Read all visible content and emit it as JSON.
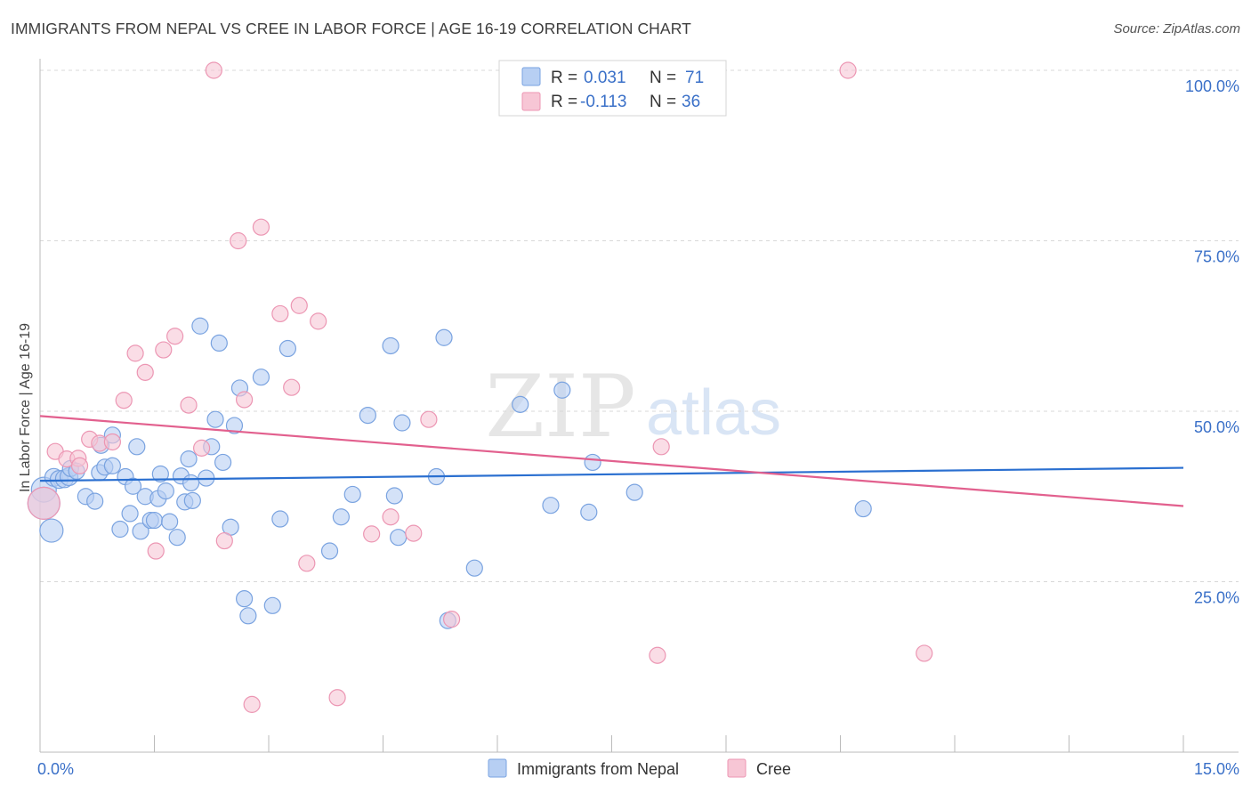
{
  "header": {
    "title": "IMMIGRANTS FROM NEPAL VS CREE IN LABOR FORCE | AGE 16-19 CORRELATION CHART",
    "source": "Source: ZipAtlas.com"
  },
  "watermark": {
    "zip": "ZIP",
    "atlas": "atlas"
  },
  "colors": {
    "nepal_fill": "#b7cff3",
    "nepal_stroke": "#7aa3e0",
    "nepal_line": "#2a6fd0",
    "cree_fill": "#f7c6d5",
    "cree_stroke": "#ec96b3",
    "cree_line": "#e2608e",
    "value_text": "#3a70c8",
    "grid": "#d8d8d8"
  },
  "legend": {
    "rows": [
      {
        "r_label": "R = ",
        "r_value": "0.031",
        "n_label": "N = ",
        "n_value": "71"
      },
      {
        "r_label": "R = ",
        "r_value": "-0.113",
        "n_label": "N = ",
        "n_value": "36"
      }
    ]
  },
  "bottom_legend": [
    {
      "label": "Immigrants from Nepal"
    },
    {
      "label": "Cree"
    }
  ],
  "chart_data": {
    "type": "scatter",
    "title": "IMMIGRANTS FROM NEPAL VS CREE IN LABOR FORCE | AGE 16-19 CORRELATION CHART",
    "xlabel": "",
    "ylabel": "In Labor Force | Age 16-19",
    "xlim": [
      0,
      15
    ],
    "ylim": [
      0,
      100
    ],
    "x_tick_labels": [
      "0.0%",
      "15.0%"
    ],
    "y_ticks": [
      25,
      50,
      75,
      100
    ],
    "y_tick_labels": [
      "25.0%",
      "50.0%",
      "75.0%",
      "100.0%"
    ],
    "grid": true,
    "series": [
      {
        "name": "Immigrants from Nepal",
        "r": 0.031,
        "n": 71,
        "trend": {
          "x": [
            0,
            15
          ],
          "y": [
            39.8,
            41.7
          ]
        },
        "points": [
          [
            0.05,
            38.5,
            14
          ],
          [
            0.05,
            36.5,
            18
          ],
          [
            0.15,
            32.5,
            13
          ],
          [
            0.18,
            40.3,
            10
          ],
          [
            0.25,
            40.0,
            10
          ],
          [
            0.32,
            40.1,
            10
          ],
          [
            0.38,
            40.4,
            10
          ],
          [
            0.4,
            41.6,
            9
          ],
          [
            0.48,
            41.2,
            9
          ],
          [
            0.6,
            37.5,
            9
          ],
          [
            0.72,
            36.8,
            9
          ],
          [
            0.78,
            41.0,
            9
          ],
          [
            0.8,
            45.0,
            9
          ],
          [
            0.85,
            41.8,
            9
          ],
          [
            0.95,
            46.5,
            9
          ],
          [
            0.95,
            42.0,
            9
          ],
          [
            1.05,
            32.7,
            9
          ],
          [
            1.12,
            40.4,
            9
          ],
          [
            1.18,
            35.0,
            9
          ],
          [
            1.22,
            39.0,
            9
          ],
          [
            1.27,
            44.8,
            9
          ],
          [
            1.32,
            32.4,
            9
          ],
          [
            1.38,
            37.5,
            9
          ],
          [
            1.45,
            34.0,
            9
          ],
          [
            1.5,
            34.0,
            9
          ],
          [
            1.55,
            37.2,
            9
          ],
          [
            1.58,
            40.8,
            9
          ],
          [
            1.65,
            38.3,
            9
          ],
          [
            1.7,
            33.8,
            9
          ],
          [
            1.8,
            31.5,
            9
          ],
          [
            1.85,
            40.5,
            9
          ],
          [
            1.9,
            36.7,
            9
          ],
          [
            1.95,
            43.0,
            9
          ],
          [
            1.98,
            39.5,
            9
          ],
          [
            2.0,
            36.9,
            9
          ],
          [
            2.1,
            62.5,
            9
          ],
          [
            2.18,
            40.2,
            9
          ],
          [
            2.25,
            44.8,
            9
          ],
          [
            2.3,
            48.8,
            9
          ],
          [
            2.35,
            60.0,
            9
          ],
          [
            2.4,
            42.5,
            9
          ],
          [
            2.5,
            33.0,
            9
          ],
          [
            2.55,
            47.9,
            9
          ],
          [
            2.62,
            53.4,
            9
          ],
          [
            2.68,
            22.5,
            9
          ],
          [
            2.73,
            20.0,
            9
          ],
          [
            2.9,
            55.0,
            9
          ],
          [
            3.05,
            21.5,
            9
          ],
          [
            3.15,
            34.2,
            9
          ],
          [
            3.25,
            59.2,
            9
          ],
          [
            3.8,
            29.5,
            9
          ],
          [
            3.95,
            34.5,
            9
          ],
          [
            4.1,
            37.8,
            9
          ],
          [
            4.3,
            49.4,
            9
          ],
          [
            4.6,
            59.6,
            9
          ],
          [
            4.65,
            37.6,
            9
          ],
          [
            4.7,
            31.5,
            9
          ],
          [
            4.75,
            48.3,
            9
          ],
          [
            5.2,
            40.4,
            9
          ],
          [
            5.3,
            60.8,
            9
          ],
          [
            5.35,
            19.3,
            9
          ],
          [
            5.7,
            27.0,
            9
          ],
          [
            6.3,
            51.0,
            9
          ],
          [
            6.7,
            36.2,
            9
          ],
          [
            6.85,
            53.1,
            9
          ],
          [
            7.2,
            35.2,
            9
          ],
          [
            7.25,
            42.5,
            9
          ],
          [
            7.8,
            38.1,
            9
          ],
          [
            10.8,
            35.7,
            9
          ]
        ]
      },
      {
        "name": "Cree",
        "r": -0.113,
        "n": 36,
        "trend": {
          "x": [
            0,
            15
          ],
          "y": [
            49.3,
            36.1
          ]
        },
        "points": [
          [
            0.05,
            36.5,
            18
          ],
          [
            0.2,
            44.1,
            9
          ],
          [
            0.35,
            43.0,
            9
          ],
          [
            0.5,
            43.1,
            9
          ],
          [
            0.52,
            42.0,
            9
          ],
          [
            0.65,
            45.9,
            9
          ],
          [
            0.78,
            45.3,
            9
          ],
          [
            0.95,
            45.5,
            9
          ],
          [
            1.1,
            51.6,
            9
          ],
          [
            1.25,
            58.5,
            9
          ],
          [
            1.38,
            55.7,
            9
          ],
          [
            1.52,
            29.5,
            9
          ],
          [
            1.62,
            59.0,
            9
          ],
          [
            1.77,
            61.0,
            9
          ],
          [
            1.95,
            50.9,
            9
          ],
          [
            2.12,
            44.6,
            9
          ],
          [
            2.28,
            100.0,
            9
          ],
          [
            2.42,
            31.0,
            9
          ],
          [
            2.6,
            75.0,
            9
          ],
          [
            2.68,
            51.7,
            9
          ],
          [
            2.78,
            7.0,
            9
          ],
          [
            2.9,
            77.0,
            9
          ],
          [
            3.15,
            64.3,
            9
          ],
          [
            3.3,
            53.5,
            9
          ],
          [
            3.4,
            65.5,
            9
          ],
          [
            3.5,
            27.7,
            9
          ],
          [
            3.65,
            63.2,
            9
          ],
          [
            3.9,
            8.0,
            9
          ],
          [
            4.35,
            32.0,
            9
          ],
          [
            4.6,
            34.5,
            9
          ],
          [
            4.9,
            32.1,
            9
          ],
          [
            5.1,
            48.8,
            9
          ],
          [
            5.4,
            19.5,
            9
          ],
          [
            8.1,
            14.2,
            9
          ],
          [
            8.15,
            44.8,
            9
          ],
          [
            10.6,
            100.0,
            9
          ],
          [
            11.6,
            14.5,
            9
          ]
        ]
      }
    ]
  }
}
